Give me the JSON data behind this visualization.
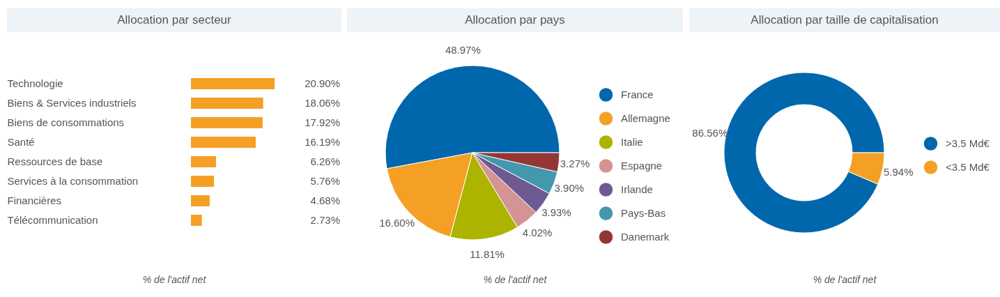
{
  "chart_data": [
    {
      "type": "bar",
      "title": "Allocation par secteur",
      "orientation": "horizontal",
      "categories": [
        "Technologie",
        "Biens & Services industriels",
        "Biens de consommations",
        "Santé",
        "Ressources de base",
        "Services à la consommation",
        "Financières",
        "Télécommunication"
      ],
      "values": [
        20.9,
        18.06,
        17.92,
        16.19,
        6.26,
        5.76,
        4.68,
        2.73
      ],
      "value_labels": [
        "20.90%",
        "18.06%",
        "17.92%",
        "16.19%",
        "6.26%",
        "5.76%",
        "4.68%",
        "2.73%"
      ],
      "color": "#f4a024",
      "tick_labels": "y",
      "annotations": [
        "% de l'actif net"
      ]
    },
    {
      "type": "pie",
      "title": "Allocation par pays",
      "categories": [
        "France",
        "Allemagne",
        "Italie",
        "Espagne",
        "Irlande",
        "Pays-Bas",
        "Danemark"
      ],
      "values": [
        48.97,
        16.6,
        11.81,
        4.02,
        3.93,
        3.9,
        3.27
      ],
      "value_labels": [
        "48.97%",
        "16.60%",
        "11.81%",
        "4.02%",
        "3.93%",
        "3.90%",
        "3.27%"
      ],
      "colors": [
        "#0067ac",
        "#f4a024",
        "#acb400",
        "#d49494",
        "#6e5a92",
        "#4398ae",
        "#943636"
      ],
      "legend": "right",
      "annotations": [
        "% de l'actif net"
      ]
    },
    {
      "type": "donut",
      "title": "Allocation par taille de capitalisation",
      "categories": [
        ">3.5 Md€",
        "<3.5 Md€"
      ],
      "values": [
        86.56,
        5.94
      ],
      "value_labels": [
        "86.56%",
        "5.94%"
      ],
      "colors": [
        "#0067ac",
        "#f4a024"
      ],
      "legend": "right",
      "annotations": [
        "% de l'actif net"
      ]
    }
  ]
}
